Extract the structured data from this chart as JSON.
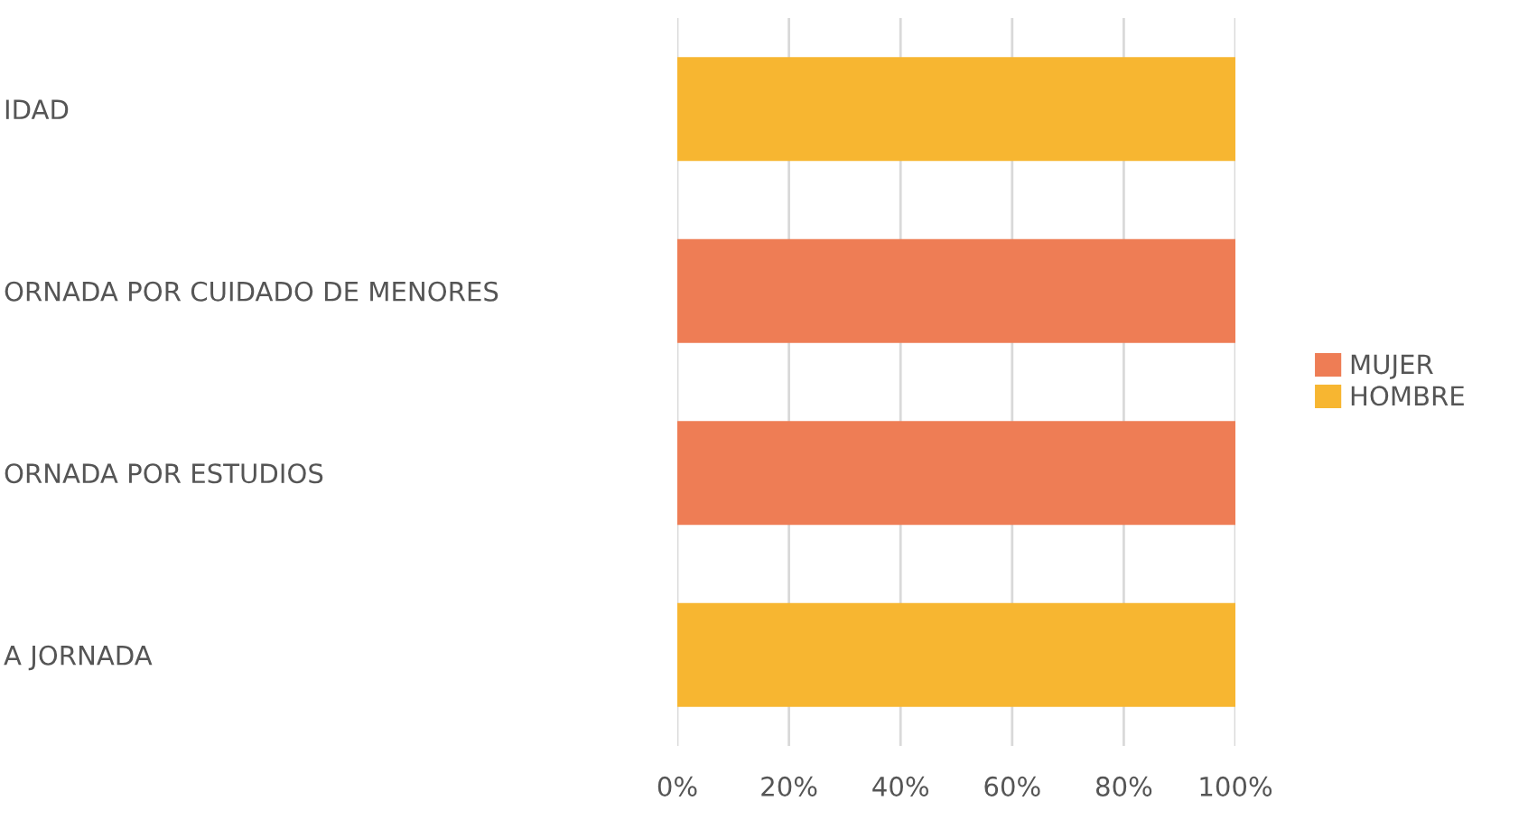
{
  "chart_data": {
    "type": "bar",
    "orientation": "horizontal",
    "stacked": true,
    "categories": [
      "IDAD",
      "ORNADA POR CUIDADO DE MENORES",
      "ORNADA POR ESTUDIOS",
      "A JORNADA"
    ],
    "series": [
      {
        "name": "MUJER",
        "color": "#ee7d55",
        "values": [
          0,
          100,
          100,
          0
        ]
      },
      {
        "name": "HOMBRE",
        "color": "#f7b631",
        "values": [
          100,
          0,
          0,
          100
        ]
      }
    ],
    "xlim": [
      0,
      100
    ],
    "xticks": [
      {
        "value": 0,
        "label": "0%"
      },
      {
        "value": 20,
        "label": "20%"
      },
      {
        "value": 40,
        "label": "40%"
      },
      {
        "value": 60,
        "label": "60%"
      },
      {
        "value": 80,
        "label": "80%"
      },
      {
        "value": 100,
        "label": "100%"
      }
    ],
    "grid": "x",
    "legend": "right"
  }
}
